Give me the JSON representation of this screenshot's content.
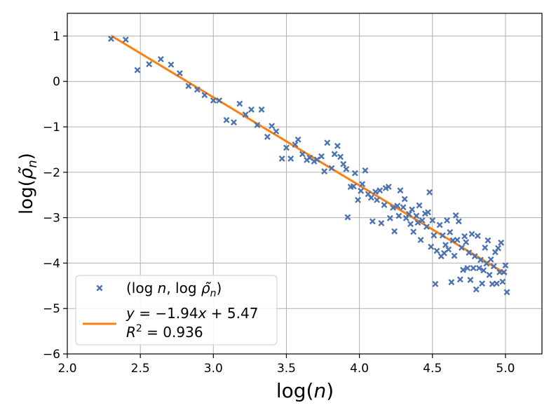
{
  "chart_data": {
    "type": "scatter",
    "title": "",
    "xlabel": "log(n)",
    "ylabel": "log(ρ̃n)",
    "xlim": [
      2.0,
      5.25
    ],
    "ylim": [
      -6,
      1.5
    ],
    "xticks": [
      2.0,
      2.5,
      3.0,
      3.5,
      4.0,
      4.5,
      5.0
    ],
    "xtick_labels": [
      "2.0",
      "2.5",
      "3.0",
      "3.5",
      "4.0",
      "4.5",
      "5.0"
    ],
    "yticks": [
      -6,
      -5,
      -4,
      -3,
      -2,
      -1,
      0,
      1
    ],
    "ytick_labels": [
      "−6",
      "−5",
      "−4",
      "−3",
      "−2",
      "−1",
      "0",
      "1"
    ],
    "grid": true,
    "legend_position": "lower-left",
    "series": [
      {
        "name": "(log n, log ρ̃n)",
        "kind": "scatter",
        "marker": "x",
        "color": "#4c72b0",
        "points": [
          [
            2.3,
            0.94
          ],
          [
            2.4,
            0.92
          ],
          [
            2.48,
            0.25
          ],
          [
            2.56,
            0.38
          ],
          [
            2.64,
            0.49
          ],
          [
            2.71,
            0.37
          ],
          [
            2.77,
            0.18
          ],
          [
            2.83,
            -0.1
          ],
          [
            2.89,
            -0.18
          ],
          [
            2.94,
            -0.3
          ],
          [
            3.0,
            -0.42
          ],
          [
            3.04,
            -0.42
          ],
          [
            3.09,
            -0.85
          ],
          [
            3.14,
            -0.9
          ],
          [
            3.18,
            -0.49
          ],
          [
            3.22,
            -0.73
          ],
          [
            3.26,
            -0.62
          ],
          [
            3.3,
            -0.96
          ],
          [
            3.33,
            -0.62
          ],
          [
            3.37,
            -1.22
          ],
          [
            3.4,
            -0.98
          ],
          [
            3.43,
            -1.1
          ],
          [
            3.47,
            -1.7
          ],
          [
            3.5,
            -1.46
          ],
          [
            3.53,
            -1.7
          ],
          [
            3.56,
            -1.39
          ],
          [
            3.58,
            -1.28
          ],
          [
            3.61,
            -1.6
          ],
          [
            3.64,
            -1.73
          ],
          [
            3.66,
            -1.68
          ],
          [
            3.69,
            -1.76
          ],
          [
            3.71,
            -1.72
          ],
          [
            3.74,
            -1.65
          ],
          [
            3.76,
            -1.98
          ],
          [
            3.78,
            -1.35
          ],
          [
            3.81,
            -1.91
          ],
          [
            3.83,
            -1.6
          ],
          [
            3.85,
            -1.42
          ],
          [
            3.87,
            -1.66
          ],
          [
            3.89,
            -1.82
          ],
          [
            3.91,
            -1.93
          ],
          [
            3.92,
            -2.99
          ],
          [
            3.94,
            -2.32
          ],
          [
            3.96,
            -2.31
          ],
          [
            3.97,
            -2.02
          ],
          [
            3.99,
            -2.61
          ],
          [
            4.01,
            -2.41
          ],
          [
            4.02,
            -2.26
          ],
          [
            4.04,
            -1.96
          ],
          [
            4.06,
            -2.48
          ],
          [
            4.08,
            -2.56
          ],
          [
            4.09,
            -3.08
          ],
          [
            4.11,
            -2.43
          ],
          [
            4.12,
            -2.61
          ],
          [
            4.14,
            -2.4
          ],
          [
            4.15,
            -3.12
          ],
          [
            4.17,
            -2.72
          ],
          [
            4.18,
            -2.35
          ],
          [
            4.2,
            -2.32
          ],
          [
            4.21,
            -3.01
          ],
          [
            4.23,
            -2.78
          ],
          [
            4.24,
            -3.3
          ],
          [
            4.26,
            -2.74
          ],
          [
            4.27,
            -2.96
          ],
          [
            4.28,
            -2.4
          ],
          [
            4.3,
            -2.77
          ],
          [
            4.31,
            -2.59
          ],
          [
            4.32,
            -3.01
          ],
          [
            4.34,
            -2.92
          ],
          [
            4.35,
            -3.14
          ],
          [
            4.36,
            -2.82
          ],
          [
            4.37,
            -3.31
          ],
          [
            4.39,
            -2.96
          ],
          [
            4.4,
            -3.11
          ],
          [
            4.41,
            -2.73
          ],
          [
            4.42,
            -3.49
          ],
          [
            4.43,
            -3.06
          ],
          [
            4.45,
            -2.91
          ],
          [
            4.46,
            -3.2
          ],
          [
            4.47,
            -2.88
          ],
          [
            4.48,
            -2.44
          ],
          [
            4.49,
            -3.64
          ],
          [
            4.5,
            -3.06
          ],
          [
            4.51,
            -3.39
          ],
          [
            4.52,
            -4.46
          ],
          [
            4.53,
            -3.73
          ],
          [
            4.55,
            -3.16
          ],
          [
            4.56,
            -3.85
          ],
          [
            4.57,
            -3.39
          ],
          [
            4.58,
            -3.78
          ],
          [
            4.59,
            -3.6
          ],
          [
            4.6,
            -3.06
          ],
          [
            4.61,
            -3.7
          ],
          [
            4.62,
            -3.32
          ],
          [
            4.63,
            -4.42
          ],
          [
            4.64,
            -3.5
          ],
          [
            4.65,
            -3.84
          ],
          [
            4.66,
            -2.95
          ],
          [
            4.67,
            -3.49
          ],
          [
            4.68,
            -3.08
          ],
          [
            4.69,
            -4.36
          ],
          [
            4.7,
            -3.66
          ],
          [
            4.71,
            -4.15
          ],
          [
            4.72,
            -3.41
          ],
          [
            4.73,
            -3.54
          ],
          [
            4.74,
            -4.11
          ],
          [
            4.75,
            -3.77
          ],
          [
            4.76,
            -4.37
          ],
          [
            4.77,
            -3.36
          ],
          [
            4.78,
            -4.11
          ],
          [
            4.79,
            -3.85
          ],
          [
            4.8,
            -4.58
          ],
          [
            4.81,
            -3.4
          ],
          [
            4.82,
            -4.11
          ],
          [
            4.83,
            -3.93
          ],
          [
            4.84,
            -4.45
          ],
          [
            4.85,
            -4.16
          ],
          [
            4.86,
            -3.66
          ],
          [
            4.87,
            -4.01
          ],
          [
            4.88,
            -3.5
          ],
          [
            4.89,
            -4.26
          ],
          [
            4.9,
            -3.92
          ],
          [
            4.91,
            -4.46
          ],
          [
            4.92,
            -4.07
          ],
          [
            4.93,
            -3.76
          ],
          [
            4.94,
            -4.45
          ],
          [
            4.95,
            -3.67
          ],
          [
            4.96,
            -4.2
          ],
          [
            4.97,
            -3.55
          ],
          [
            4.98,
            -4.41
          ],
          [
            4.99,
            -4.2
          ],
          [
            5.0,
            -4.05
          ],
          [
            5.01,
            -4.64
          ]
        ]
      },
      {
        "name": "fit",
        "kind": "line",
        "color": "#ff7f0e",
        "slope": -1.94,
        "intercept": 5.47,
        "x_range": [
          2.3,
          5.01
        ]
      }
    ],
    "legend": [
      {
        "label": "(log n,  log ρ̃n)",
        "marker": "x",
        "color": "#4c72b0"
      },
      {
        "label_line1": "y = −1.94x + 5.47",
        "label_line2": "R² = 0.936",
        "marker": "line",
        "color": "#ff7f0e"
      }
    ]
  }
}
